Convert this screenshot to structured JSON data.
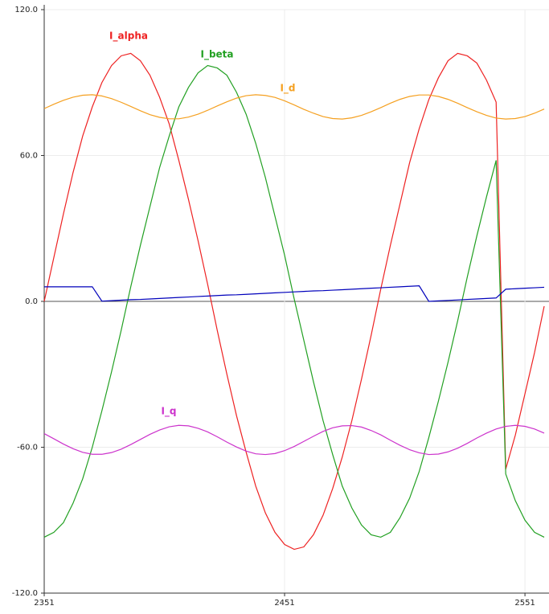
{
  "chart_data": {
    "type": "line",
    "x": [
      2351,
      2355,
      2359,
      2363,
      2367,
      2371,
      2375,
      2379,
      2383,
      2387,
      2391,
      2395,
      2399,
      2403,
      2407,
      2411,
      2415,
      2419,
      2423,
      2427,
      2431,
      2435,
      2439,
      2443,
      2447,
      2451,
      2455,
      2459,
      2463,
      2467,
      2471,
      2475,
      2479,
      2483,
      2487,
      2491,
      2495,
      2499,
      2503,
      2507,
      2511,
      2515,
      2519,
      2523,
      2527,
      2531,
      2535,
      2539,
      2543,
      2547,
      2551,
      2555,
      2559
    ],
    "series": [
      {
        "name": "I_alpha",
        "color": "#ee2222",
        "values": [
          0,
          18,
          36,
          53,
          68,
          80,
          90,
          97,
          101,
          102,
          99,
          93,
          84,
          73,
          58,
          42,
          25,
          7,
          -12,
          -30,
          -47,
          -62,
          -76,
          -87,
          -95,
          -100,
          -102,
          -101,
          -96,
          -88,
          -77,
          -64,
          -49,
          -32,
          -14,
          5,
          23,
          40,
          57,
          71,
          83,
          92,
          99,
          102,
          101,
          98,
          91,
          82,
          -69,
          -55,
          -38,
          -21,
          -2
        ]
      },
      {
        "name": "I_beta",
        "color": "#22a022",
        "values": [
          -97,
          -95,
          -91,
          -83,
          -73,
          -60,
          -45,
          -29,
          -12,
          6,
          23,
          39,
          55,
          68,
          80,
          88,
          94,
          97,
          96,
          93,
          86,
          77,
          65,
          51,
          35,
          19,
          1,
          -16,
          -33,
          -49,
          -63,
          -76,
          -85,
          -92,
          -96,
          -97,
          -95,
          -89,
          -81,
          -70,
          -56,
          -41,
          -25,
          -8,
          10,
          27,
          43,
          58,
          -71,
          -82,
          -90,
          -95,
          -97
        ]
      },
      {
        "name": "I_d",
        "color": "#f5a020",
        "values": [
          79.3,
          81.1,
          82.7,
          84.0,
          84.8,
          85.0,
          84.5,
          83.4,
          81.9,
          80.2,
          78.4,
          76.8,
          75.7,
          75.1,
          75.1,
          75.8,
          77.0,
          78.6,
          80.4,
          82.1,
          83.6,
          84.6,
          85.0,
          84.7,
          83.9,
          82.5,
          80.8,
          79.0,
          77.4,
          76.0,
          75.2,
          75.0,
          75.5,
          76.5,
          78.0,
          79.7,
          81.5,
          83.1,
          84.3,
          84.9,
          84.9,
          84.3,
          83.1,
          81.5,
          79.7,
          78.0,
          76.5,
          75.4,
          75.0,
          75.2,
          76.0,
          77.4,
          79.1
        ]
      },
      {
        "name": "I_q",
        "color": "#cc33cc",
        "values": [
          -54.4,
          -56.5,
          -58.7,
          -60.6,
          -62.1,
          -62.9,
          -62.9,
          -62.2,
          -60.8,
          -58.9,
          -56.8,
          -54.7,
          -52.9,
          -51.6,
          -51.0,
          -51.2,
          -52.2,
          -53.7,
          -55.7,
          -57.9,
          -59.9,
          -61.6,
          -62.7,
          -63.0,
          -62.6,
          -61.4,
          -59.7,
          -57.6,
          -55.5,
          -53.5,
          -52.0,
          -51.2,
          -51.1,
          -51.7,
          -53.1,
          -54.9,
          -57.1,
          -59.2,
          -61.0,
          -62.3,
          -63.0,
          -62.8,
          -61.9,
          -60.4,
          -58.4,
          -56.2,
          -54.2,
          -52.5,
          -51.4,
          -51.0,
          -51.4,
          -52.5,
          -54.2
        ]
      },
      {
        "color": "#0000bb",
        "values": [
          6,
          6,
          6,
          6,
          6,
          6,
          0.1,
          0.3,
          0.5,
          0.7,
          0.8,
          1.0,
          1.2,
          1.4,
          1.6,
          1.8,
          2.0,
          2.2,
          2.4,
          2.6,
          2.7,
          2.9,
          3.1,
          3.3,
          3.5,
          3.7,
          3.9,
          4.1,
          4.3,
          4.4,
          4.6,
          4.8,
          5.0,
          5.2,
          5.4,
          5.6,
          5.8,
          6.0,
          6.2,
          6.4,
          0,
          0.2,
          0.4,
          0.6,
          0.8,
          1.0,
          1.2,
          1.4,
          5.0,
          5.2,
          5.4,
          5.6,
          5.8
        ]
      }
    ],
    "xlim": [
      2351,
      2561
    ],
    "xticks": [
      2351,
      2451,
      2551
    ],
    "ylim": [
      -120,
      120
    ],
    "yticks": [
      {
        "value": -120,
        "label": "-120.0"
      },
      {
        "value": -60,
        "label": "-60.0"
      },
      {
        "value": 0,
        "label": "0.0"
      },
      {
        "value": 60,
        "label": "60.0"
      },
      {
        "value": 120,
        "label": "120.0"
      }
    ],
    "grid": true
  }
}
